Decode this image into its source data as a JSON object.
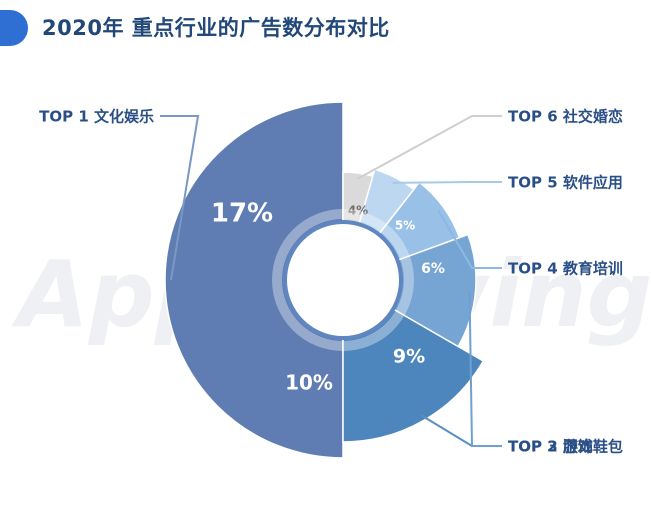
{
  "header": {
    "title": "2020年 重点行业的广告数分布对比",
    "accent_color": "#2f6fd3",
    "icon": "title-bar-icon"
  },
  "watermark": {
    "text": "AppGrowing"
  },
  "chart_data": {
    "type": "pie",
    "variant": "rose-donut",
    "title": "2020年 重点行业的广告数分布对比",
    "categories": [
      "TOP 1 文化娱乐",
      "TOP 2 游戏",
      "TOP 3 服饰鞋包",
      "TOP 4 教育培训",
      "TOP 5 软件应用",
      "TOP 6 社交婚恋"
    ],
    "values": [
      17,
      10,
      9,
      6,
      5,
      4
    ],
    "value_labels": [
      "17%",
      "10%",
      "9%",
      "6%",
      "5%",
      "4%"
    ],
    "unit": "%",
    "colors": [
      "#5f7db2",
      "#4d86bc",
      "#77a5d3",
      "#99c0e6",
      "#bed7f0",
      "#dadada"
    ],
    "label_colors": [
      "#2a4f86",
      "#2a4f86",
      "#2a4f86",
      "#2a4f86",
      "#2a4f86",
      "#2a4f86"
    ],
    "legend": "callout-labels"
  }
}
